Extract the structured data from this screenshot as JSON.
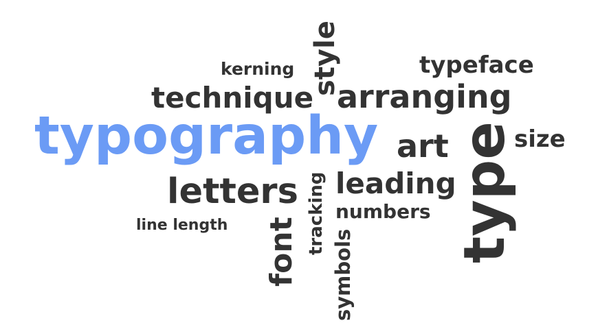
{
  "words": {
    "typography": "typography",
    "technique": "technique",
    "arranging": "arranging",
    "kerning": "kerning",
    "style": "style",
    "typeface": "typeface",
    "art": "art",
    "size": "size",
    "type": "type",
    "letters": "letters",
    "leading": "leading",
    "numbers": "numbers",
    "line_length": "line length",
    "tracking": "tracking",
    "font": "font",
    "symbols": "symbols"
  },
  "colors": {
    "accent": "#6b9bf5",
    "text": "#333333",
    "background": "#ffffff"
  }
}
